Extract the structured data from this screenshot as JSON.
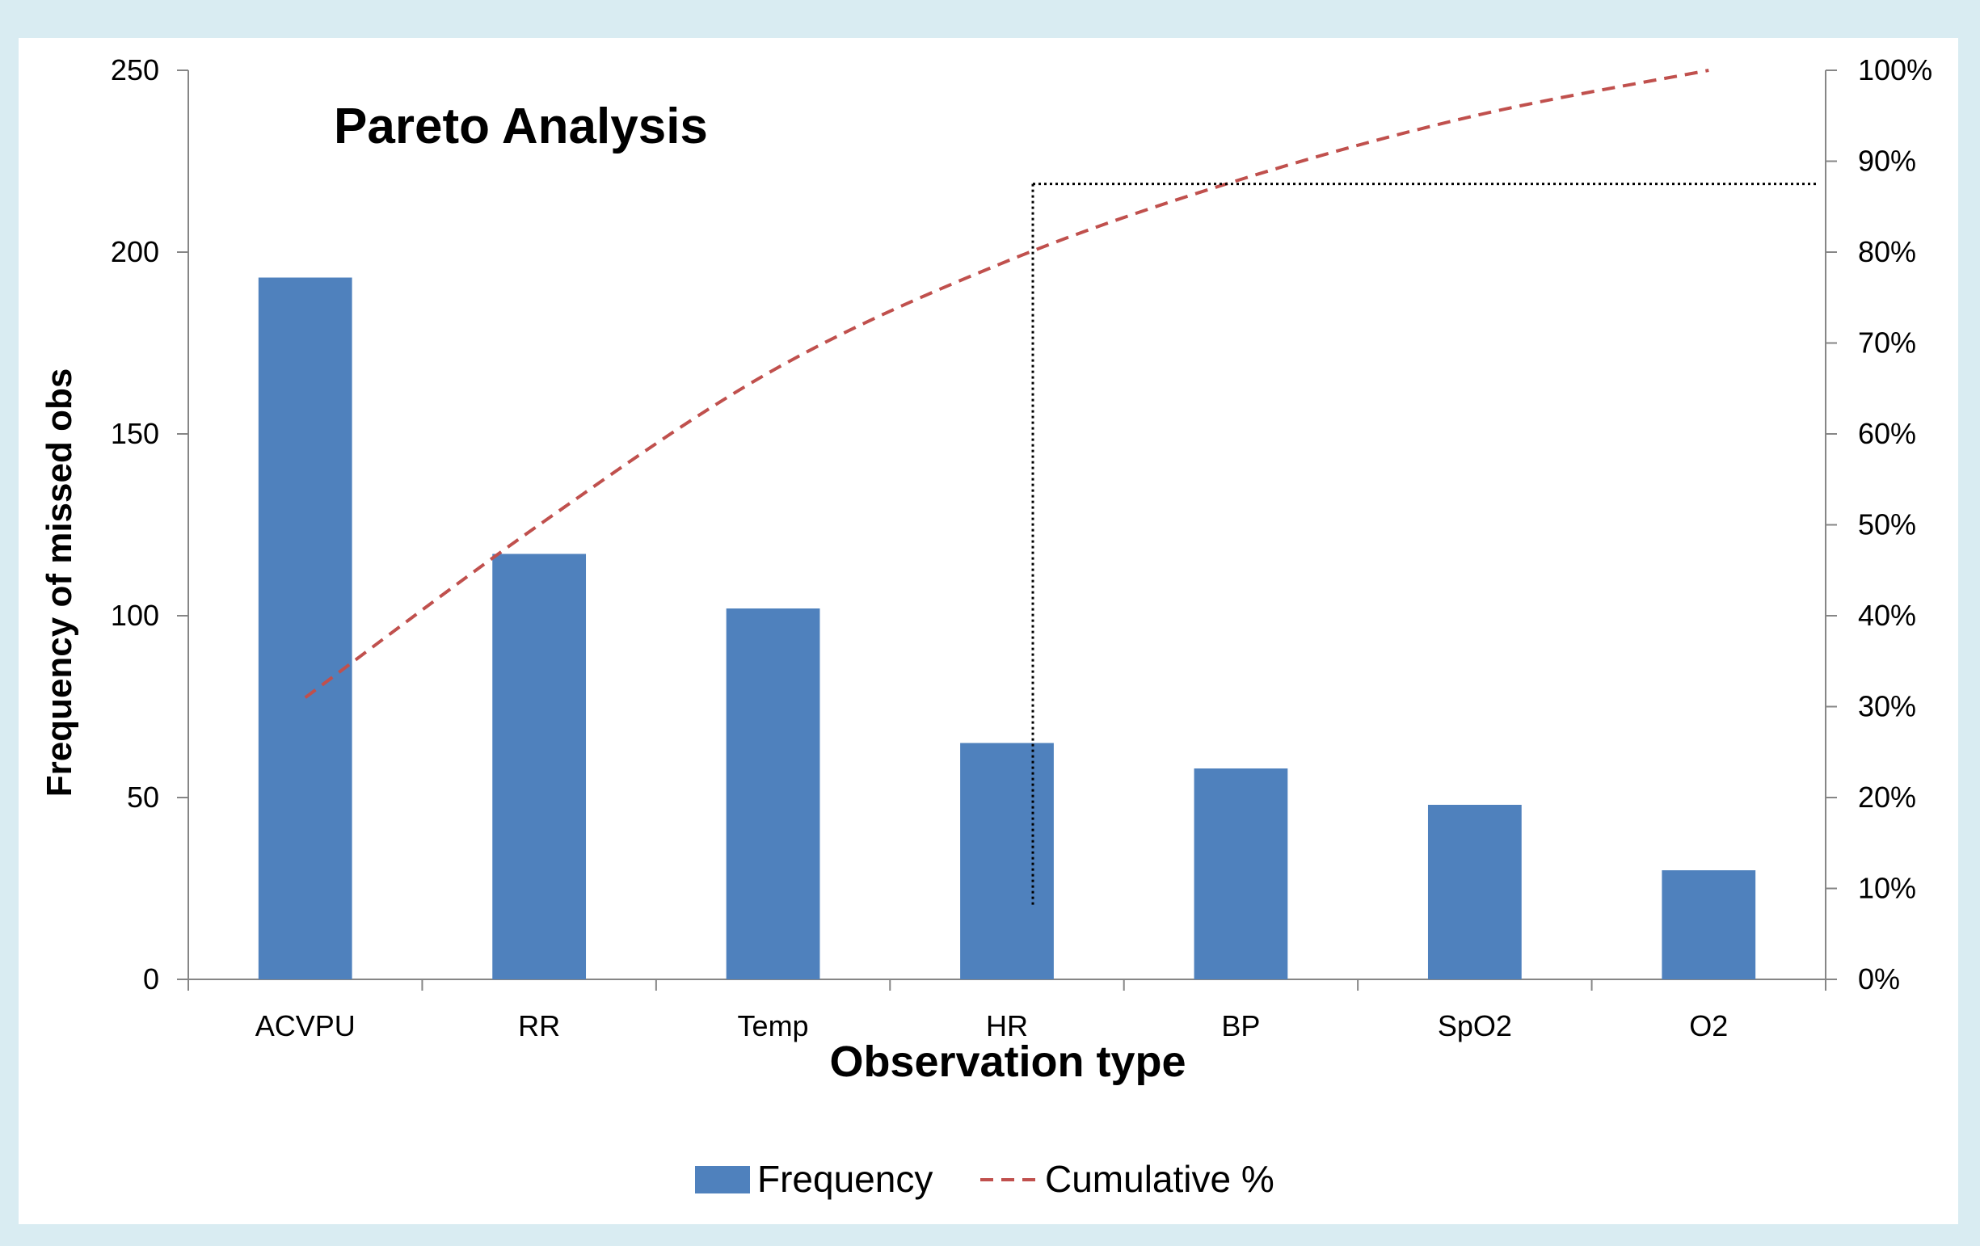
{
  "chart_data": {
    "type": "bar",
    "title": "Pareto Analysis",
    "xlabel": "Observation type",
    "ylabel": "Frequency of missed obs",
    "categories": [
      "ACVPU",
      "RR",
      "Temp",
      "HR",
      "BP",
      "SpO2",
      "O2"
    ],
    "ylim": [
      0,
      250
    ],
    "yticks": [
      0,
      50,
      100,
      150,
      200,
      250
    ],
    "y2lim": [
      0,
      100
    ],
    "y2ticks": [
      "0%",
      "10%",
      "20%",
      "30%",
      "40%",
      "50%",
      "60%",
      "70%",
      "80%",
      "90%",
      "100%"
    ],
    "series": [
      {
        "name": "Frequency",
        "type": "bar",
        "axis": "left",
        "color": "#4f81bd",
        "values": [
          193,
          117,
          102,
          65,
          58,
          48,
          30
        ]
      },
      {
        "name": "Cumulative %",
        "type": "line",
        "axis": "right",
        "style": "dashed",
        "color": "#c0504d",
        "values": [
          31,
          50,
          67,
          79,
          88,
          95,
          100
        ]
      }
    ],
    "reference_lines": {
      "threshold_percent": 87.5,
      "category": "HR",
      "style": "dotted",
      "color": "#000000"
    },
    "legend": {
      "placement": "bottom"
    },
    "grid": false
  }
}
